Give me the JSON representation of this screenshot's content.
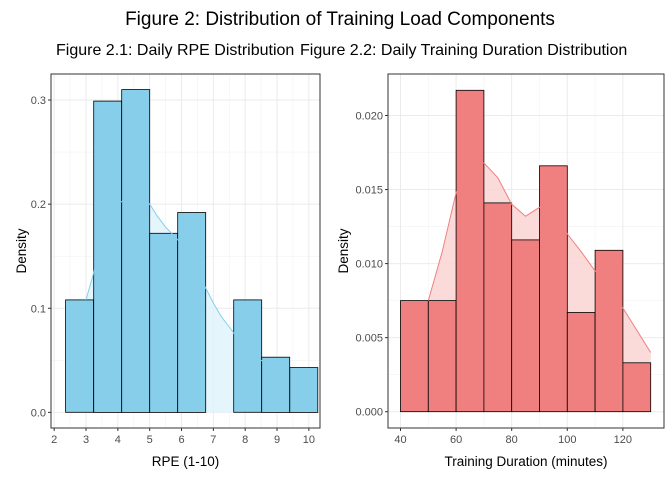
{
  "figure": {
    "title": "Figure 2: Distribution of Training Load Components"
  },
  "chart_data": [
    {
      "type": "bar",
      "subtype": "histogram-with-density",
      "title": "Figure 2.1: Daily RPE Distribution",
      "xlabel": "RPE (1-10)",
      "ylabel": "Density",
      "xlim": [
        1.9,
        10.35
      ],
      "ylim": [
        -0.015,
        0.325
      ],
      "x_ticks": [
        2,
        3,
        4,
        5,
        6,
        7,
        8,
        9,
        10
      ],
      "y_ticks": [
        0.0,
        0.1,
        0.2,
        0.3
      ],
      "y_tick_labels": [
        "0.0",
        "0.1",
        "0.2",
        "0.3"
      ],
      "bins": [
        {
          "x0": 2.36,
          "x1": 3.24,
          "density": 0.108
        },
        {
          "x0": 3.24,
          "x1": 4.12,
          "density": 0.299
        },
        {
          "x0": 4.12,
          "x1": 5.0,
          "density": 0.31
        },
        {
          "x0": 5.0,
          "x1": 5.88,
          "density": 0.172
        },
        {
          "x0": 5.88,
          "x1": 6.76,
          "density": 0.192
        },
        {
          "x0": 6.76,
          "x1": 7.64,
          "density": 0.0
        },
        {
          "x0": 7.64,
          "x1": 8.52,
          "density": 0.108
        },
        {
          "x0": 8.52,
          "x1": 9.4,
          "density": 0.053
        },
        {
          "x0": 9.4,
          "x1": 10.28,
          "density": 0.043
        }
      ],
      "density_x": [
        3.0,
        3.25,
        3.5,
        3.75,
        4.0,
        4.25,
        4.5,
        4.75,
        5.0,
        5.25,
        5.5,
        5.75,
        6.0,
        6.25,
        6.5,
        6.75,
        7.0,
        7.25,
        7.5,
        7.75,
        8.0,
        8.25,
        8.5,
        8.75,
        9.0
      ],
      "density_y": [
        0.108,
        0.135,
        0.165,
        0.188,
        0.2,
        0.205,
        0.21,
        0.208,
        0.2,
        0.188,
        0.178,
        0.17,
        0.162,
        0.15,
        0.136,
        0.12,
        0.105,
        0.092,
        0.082,
        0.072,
        0.062,
        0.055,
        0.05,
        0.046,
        0.043
      ],
      "bar_fill": "#87CEEB",
      "density_fill": "#E0F3FB",
      "density_line": "#87CEEB",
      "grid": true
    },
    {
      "type": "bar",
      "subtype": "histogram-with-density",
      "title": "Figure 2.2: Daily Training Duration Distribution",
      "xlabel": "Training Duration (minutes)",
      "ylabel": "Density",
      "xlim": [
        35.5,
        134.8
      ],
      "ylim": [
        -0.0011,
        0.0228
      ],
      "x_ticks": [
        40,
        60,
        80,
        100,
        120
      ],
      "y_ticks": [
        0.0,
        0.005,
        0.01,
        0.015,
        0.02
      ],
      "y_tick_labels": [
        "0.000",
        "0.005",
        "0.010",
        "0.015",
        "0.020"
      ],
      "bins": [
        {
          "x0": 40.0,
          "x1": 50.0,
          "density": 0.0075
        },
        {
          "x0": 50.0,
          "x1": 60.0,
          "density": 0.0075
        },
        {
          "x0": 60.0,
          "x1": 70.0,
          "density": 0.0217
        },
        {
          "x0": 70.0,
          "x1": 80.0,
          "density": 0.0141
        },
        {
          "x0": 80.0,
          "x1": 90.0,
          "density": 0.0116
        },
        {
          "x0": 90.0,
          "x1": 100.0,
          "density": 0.0166
        },
        {
          "x0": 100.0,
          "x1": 110.0,
          "density": 0.0067
        },
        {
          "x0": 110.0,
          "x1": 120.0,
          "density": 0.0109
        },
        {
          "x0": 120.0,
          "x1": 130.0,
          "density": 0.0033
        }
      ],
      "density_x": [
        50,
        55,
        60,
        65,
        70,
        75,
        80,
        85,
        90,
        95,
        100,
        105,
        110,
        115,
        120,
        125,
        130
      ],
      "density_y": [
        0.0075,
        0.0108,
        0.0148,
        0.0165,
        0.0168,
        0.0158,
        0.014,
        0.0132,
        0.0138,
        0.0135,
        0.012,
        0.0108,
        0.0095,
        0.0085,
        0.007,
        0.0055,
        0.004
      ],
      "bar_fill": "#F08080",
      "density_fill": "#FAD4D4",
      "density_line": "#F08080",
      "grid": true
    }
  ]
}
